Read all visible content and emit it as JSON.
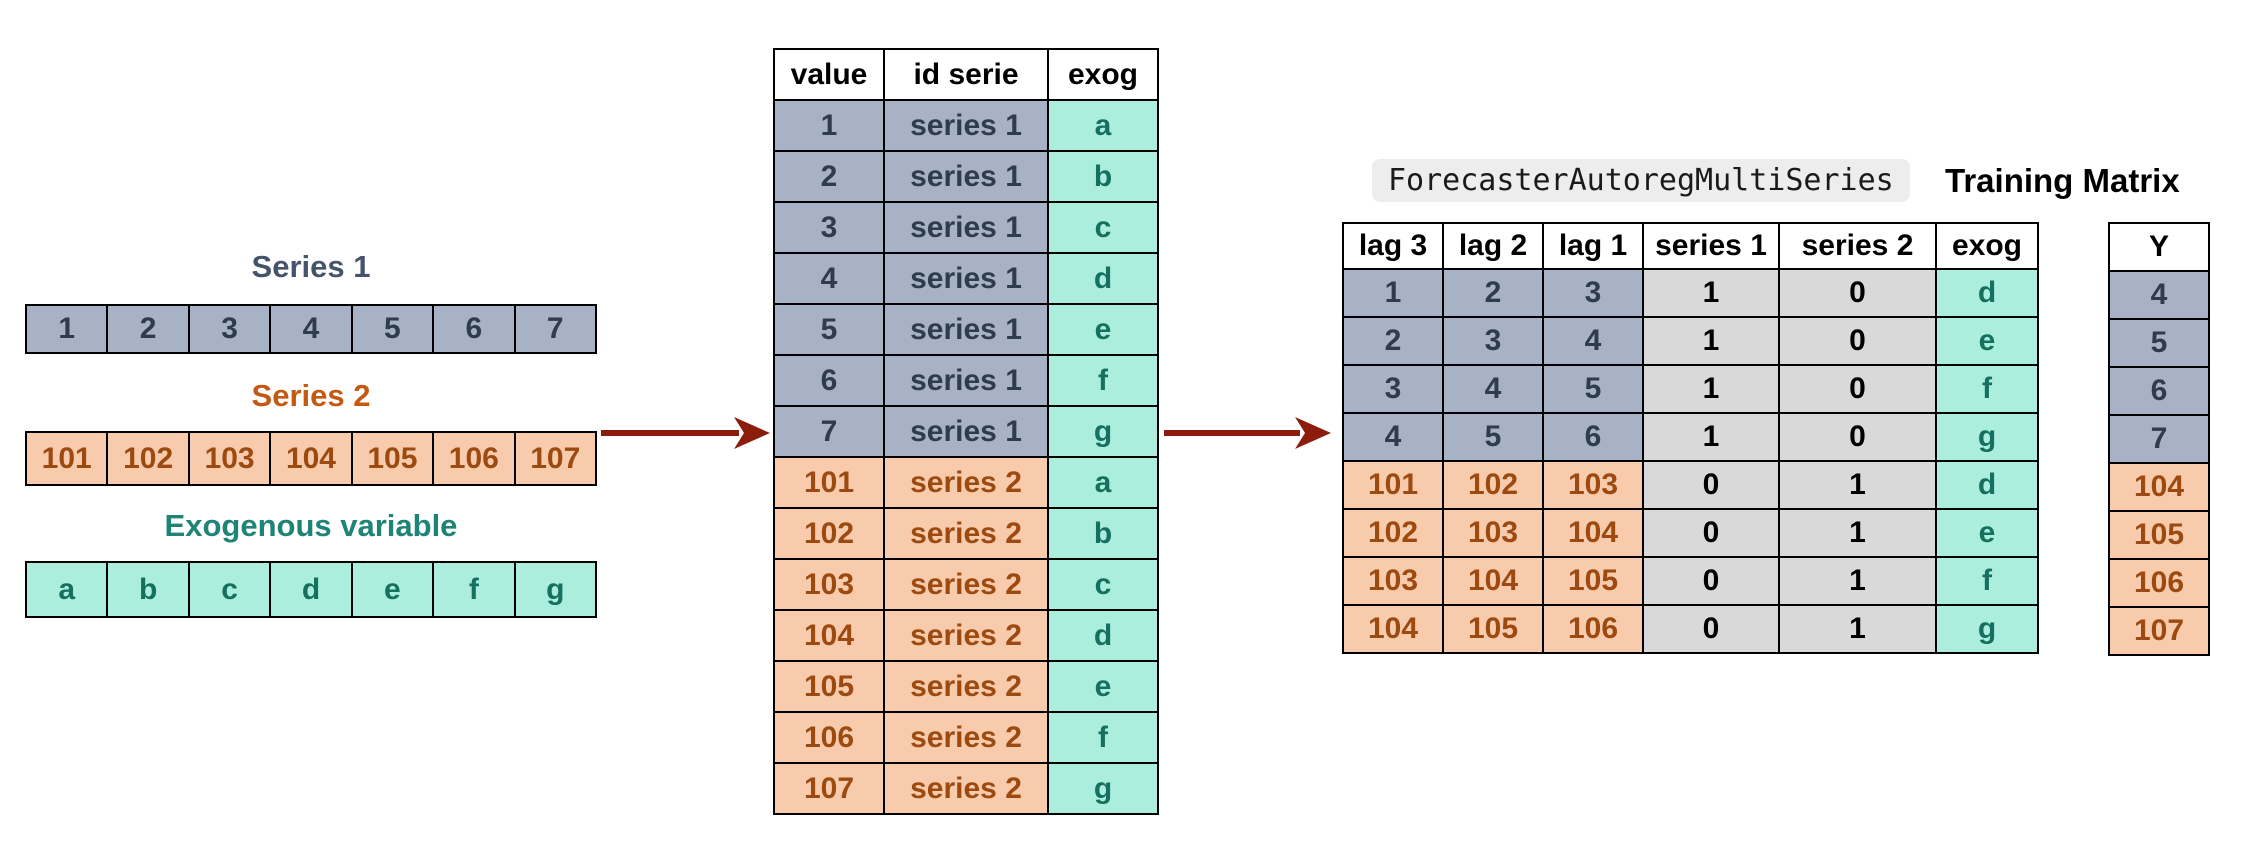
{
  "left_panel": {
    "series1": {
      "title": "Series 1",
      "values": [
        "1",
        "2",
        "3",
        "4",
        "5",
        "6",
        "7"
      ]
    },
    "series2": {
      "title": "Series 2",
      "values": [
        "101",
        "102",
        "103",
        "104",
        "105",
        "106",
        "107"
      ]
    },
    "exog": {
      "title": "Exogenous variable",
      "values": [
        "a",
        "b",
        "c",
        "d",
        "e",
        "f",
        "g"
      ]
    }
  },
  "stacked_table": {
    "headers": [
      "value",
      "id serie",
      "exog"
    ],
    "rows": [
      {
        "cells": [
          "1",
          "series 1",
          "a"
        ],
        "variant": "s1"
      },
      {
        "cells": [
          "2",
          "series 1",
          "b"
        ],
        "variant": "s1"
      },
      {
        "cells": [
          "3",
          "series 1",
          "c"
        ],
        "variant": "s1"
      },
      {
        "cells": [
          "4",
          "series 1",
          "d"
        ],
        "variant": "s1"
      },
      {
        "cells": [
          "5",
          "series 1",
          "e"
        ],
        "variant": "s1"
      },
      {
        "cells": [
          "6",
          "series 1",
          "f"
        ],
        "variant": "s1"
      },
      {
        "cells": [
          "7",
          "series 1",
          "g"
        ],
        "variant": "s1"
      },
      {
        "cells": [
          "101",
          "series 2",
          "a"
        ],
        "variant": "s2"
      },
      {
        "cells": [
          "102",
          "series 2",
          "b"
        ],
        "variant": "s2"
      },
      {
        "cells": [
          "103",
          "series 2",
          "c"
        ],
        "variant": "s2"
      },
      {
        "cells": [
          "104",
          "series 2",
          "d"
        ],
        "variant": "s2"
      },
      {
        "cells": [
          "105",
          "series 2",
          "e"
        ],
        "variant": "s2"
      },
      {
        "cells": [
          "106",
          "series 2",
          "f"
        ],
        "variant": "s2"
      },
      {
        "cells": [
          "107",
          "series 2",
          "g"
        ],
        "variant": "s2"
      }
    ]
  },
  "title": {
    "code": "ForecasterAutoregMultiSeries",
    "label": "Training Matrix"
  },
  "training_matrix": {
    "headers": [
      "lag 3",
      "lag 2",
      "lag 1",
      "series 1",
      "series 2",
      "exog"
    ],
    "rows": [
      {
        "cells": [
          "1",
          "2",
          "3",
          "1",
          "0",
          "d"
        ],
        "variant": "s1"
      },
      {
        "cells": [
          "2",
          "3",
          "4",
          "1",
          "0",
          "e"
        ],
        "variant": "s1"
      },
      {
        "cells": [
          "3",
          "4",
          "5",
          "1",
          "0",
          "f"
        ],
        "variant": "s1"
      },
      {
        "cells": [
          "4",
          "5",
          "6",
          "1",
          "0",
          "g"
        ],
        "variant": "s1"
      },
      {
        "cells": [
          "101",
          "102",
          "103",
          "0",
          "1",
          "d"
        ],
        "variant": "s2"
      },
      {
        "cells": [
          "102",
          "103",
          "104",
          "0",
          "1",
          "e"
        ],
        "variant": "s2"
      },
      {
        "cells": [
          "103",
          "104",
          "105",
          "0",
          "1",
          "f"
        ],
        "variant": "s2"
      },
      {
        "cells": [
          "104",
          "105",
          "106",
          "0",
          "1",
          "g"
        ],
        "variant": "s2"
      }
    ]
  },
  "y_column": {
    "header": "Y",
    "rows": [
      {
        "value": "4",
        "variant": "s1"
      },
      {
        "value": "5",
        "variant": "s1"
      },
      {
        "value": "6",
        "variant": "s1"
      },
      {
        "value": "7",
        "variant": "s1"
      },
      {
        "value": "104",
        "variant": "s2"
      },
      {
        "value": "105",
        "variant": "s2"
      },
      {
        "value": "106",
        "variant": "s2"
      },
      {
        "value": "107",
        "variant": "s2"
      }
    ]
  },
  "colors": {
    "series1_fill": "#A8B2C6",
    "series1_border": "#44546A",
    "series1_text": "#2F3B4E",
    "series1_title": "#44546A",
    "series2_fill": "#F8CBAD",
    "series2_border": "#8E3B0B",
    "series2_text": "#9C4A10",
    "series2_title": "#C45911",
    "exog_fill": "#ABEEDE",
    "exog_border": "#18937F",
    "exog_text": "#15705F",
    "exog_title": "#1E8476",
    "dummy_fill": "#D9D9D9",
    "dummy_border": "#000000",
    "dummy_text": "#000000",
    "header_fill": "#FFFFFF",
    "header_border": "#000000",
    "header_text": "#000000",
    "arrow": "#8C1C0C",
    "code_bg": "#EDEDED",
    "code_text": "#1A1A1A",
    "title_text": "#000000"
  }
}
